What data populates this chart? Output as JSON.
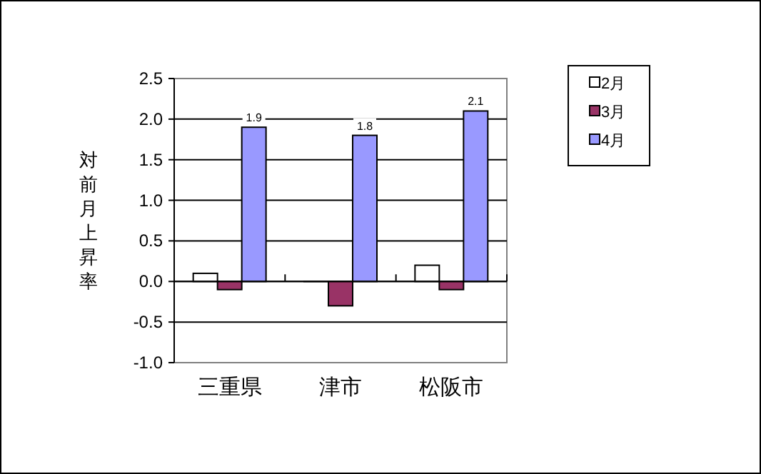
{
  "chart_data": {
    "type": "bar",
    "ylabel": "対前月上昇率",
    "categories": [
      "三重県",
      "津市",
      "松阪市"
    ],
    "series": [
      {
        "name": "2月",
        "color": "#ffffff",
        "values": [
          0.1,
          0.0,
          0.2
        ]
      },
      {
        "name": "3月",
        "color": "#993366",
        "values": [
          -0.1,
          -0.3,
          -0.1
        ]
      },
      {
        "name": "4月",
        "color": "#9999ff",
        "values": [
          1.9,
          1.8,
          2.1
        ],
        "value_labels": [
          "1.9",
          "1.8",
          "2.1"
        ]
      }
    ],
    "ylim": [
      -1.0,
      2.5
    ],
    "yticks": [
      {
        "value": -1.0,
        "label": "-1.0"
      },
      {
        "value": -0.5,
        "label": "-0.5"
      },
      {
        "value": 0.0,
        "label": "0.0"
      },
      {
        "value": 0.5,
        "label": "0.5"
      },
      {
        "value": 1.0,
        "label": "1.0"
      },
      {
        "value": 1.5,
        "label": "1.5"
      },
      {
        "value": 2.0,
        "label": "2.0"
      },
      {
        "value": 2.5,
        "label": "2.5"
      }
    ],
    "grid": "y",
    "legend": "right"
  }
}
